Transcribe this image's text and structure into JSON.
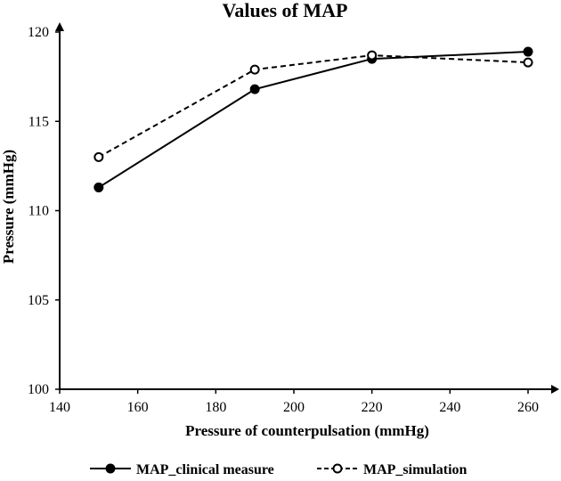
{
  "chart_data": {
    "type": "line",
    "title": "Values of MAP",
    "xlabel": "Pressure of counterpulsation (mmHg)",
    "ylabel": "Pressure (mmHg)",
    "xlim": [
      140,
      270
    ],
    "ylim": [
      100,
      120
    ],
    "xticks": [
      140,
      160,
      180,
      200,
      220,
      240,
      260
    ],
    "yticks": [
      100,
      105,
      110,
      115,
      120
    ],
    "x": [
      150,
      190,
      220,
      260
    ],
    "series": [
      {
        "name": "MAP_clinical measure",
        "values": [
          111.3,
          116.8,
          118.5,
          118.9
        ],
        "line_style": "solid",
        "marker": "filled-circle",
        "color": "#000000"
      },
      {
        "name": "MAP_simulation",
        "values": [
          113.0,
          117.9,
          118.7,
          118.3
        ],
        "line_style": "dashed",
        "marker": "open-circle",
        "color": "#000000"
      }
    ],
    "grid": false,
    "legend_position": "bottom"
  }
}
